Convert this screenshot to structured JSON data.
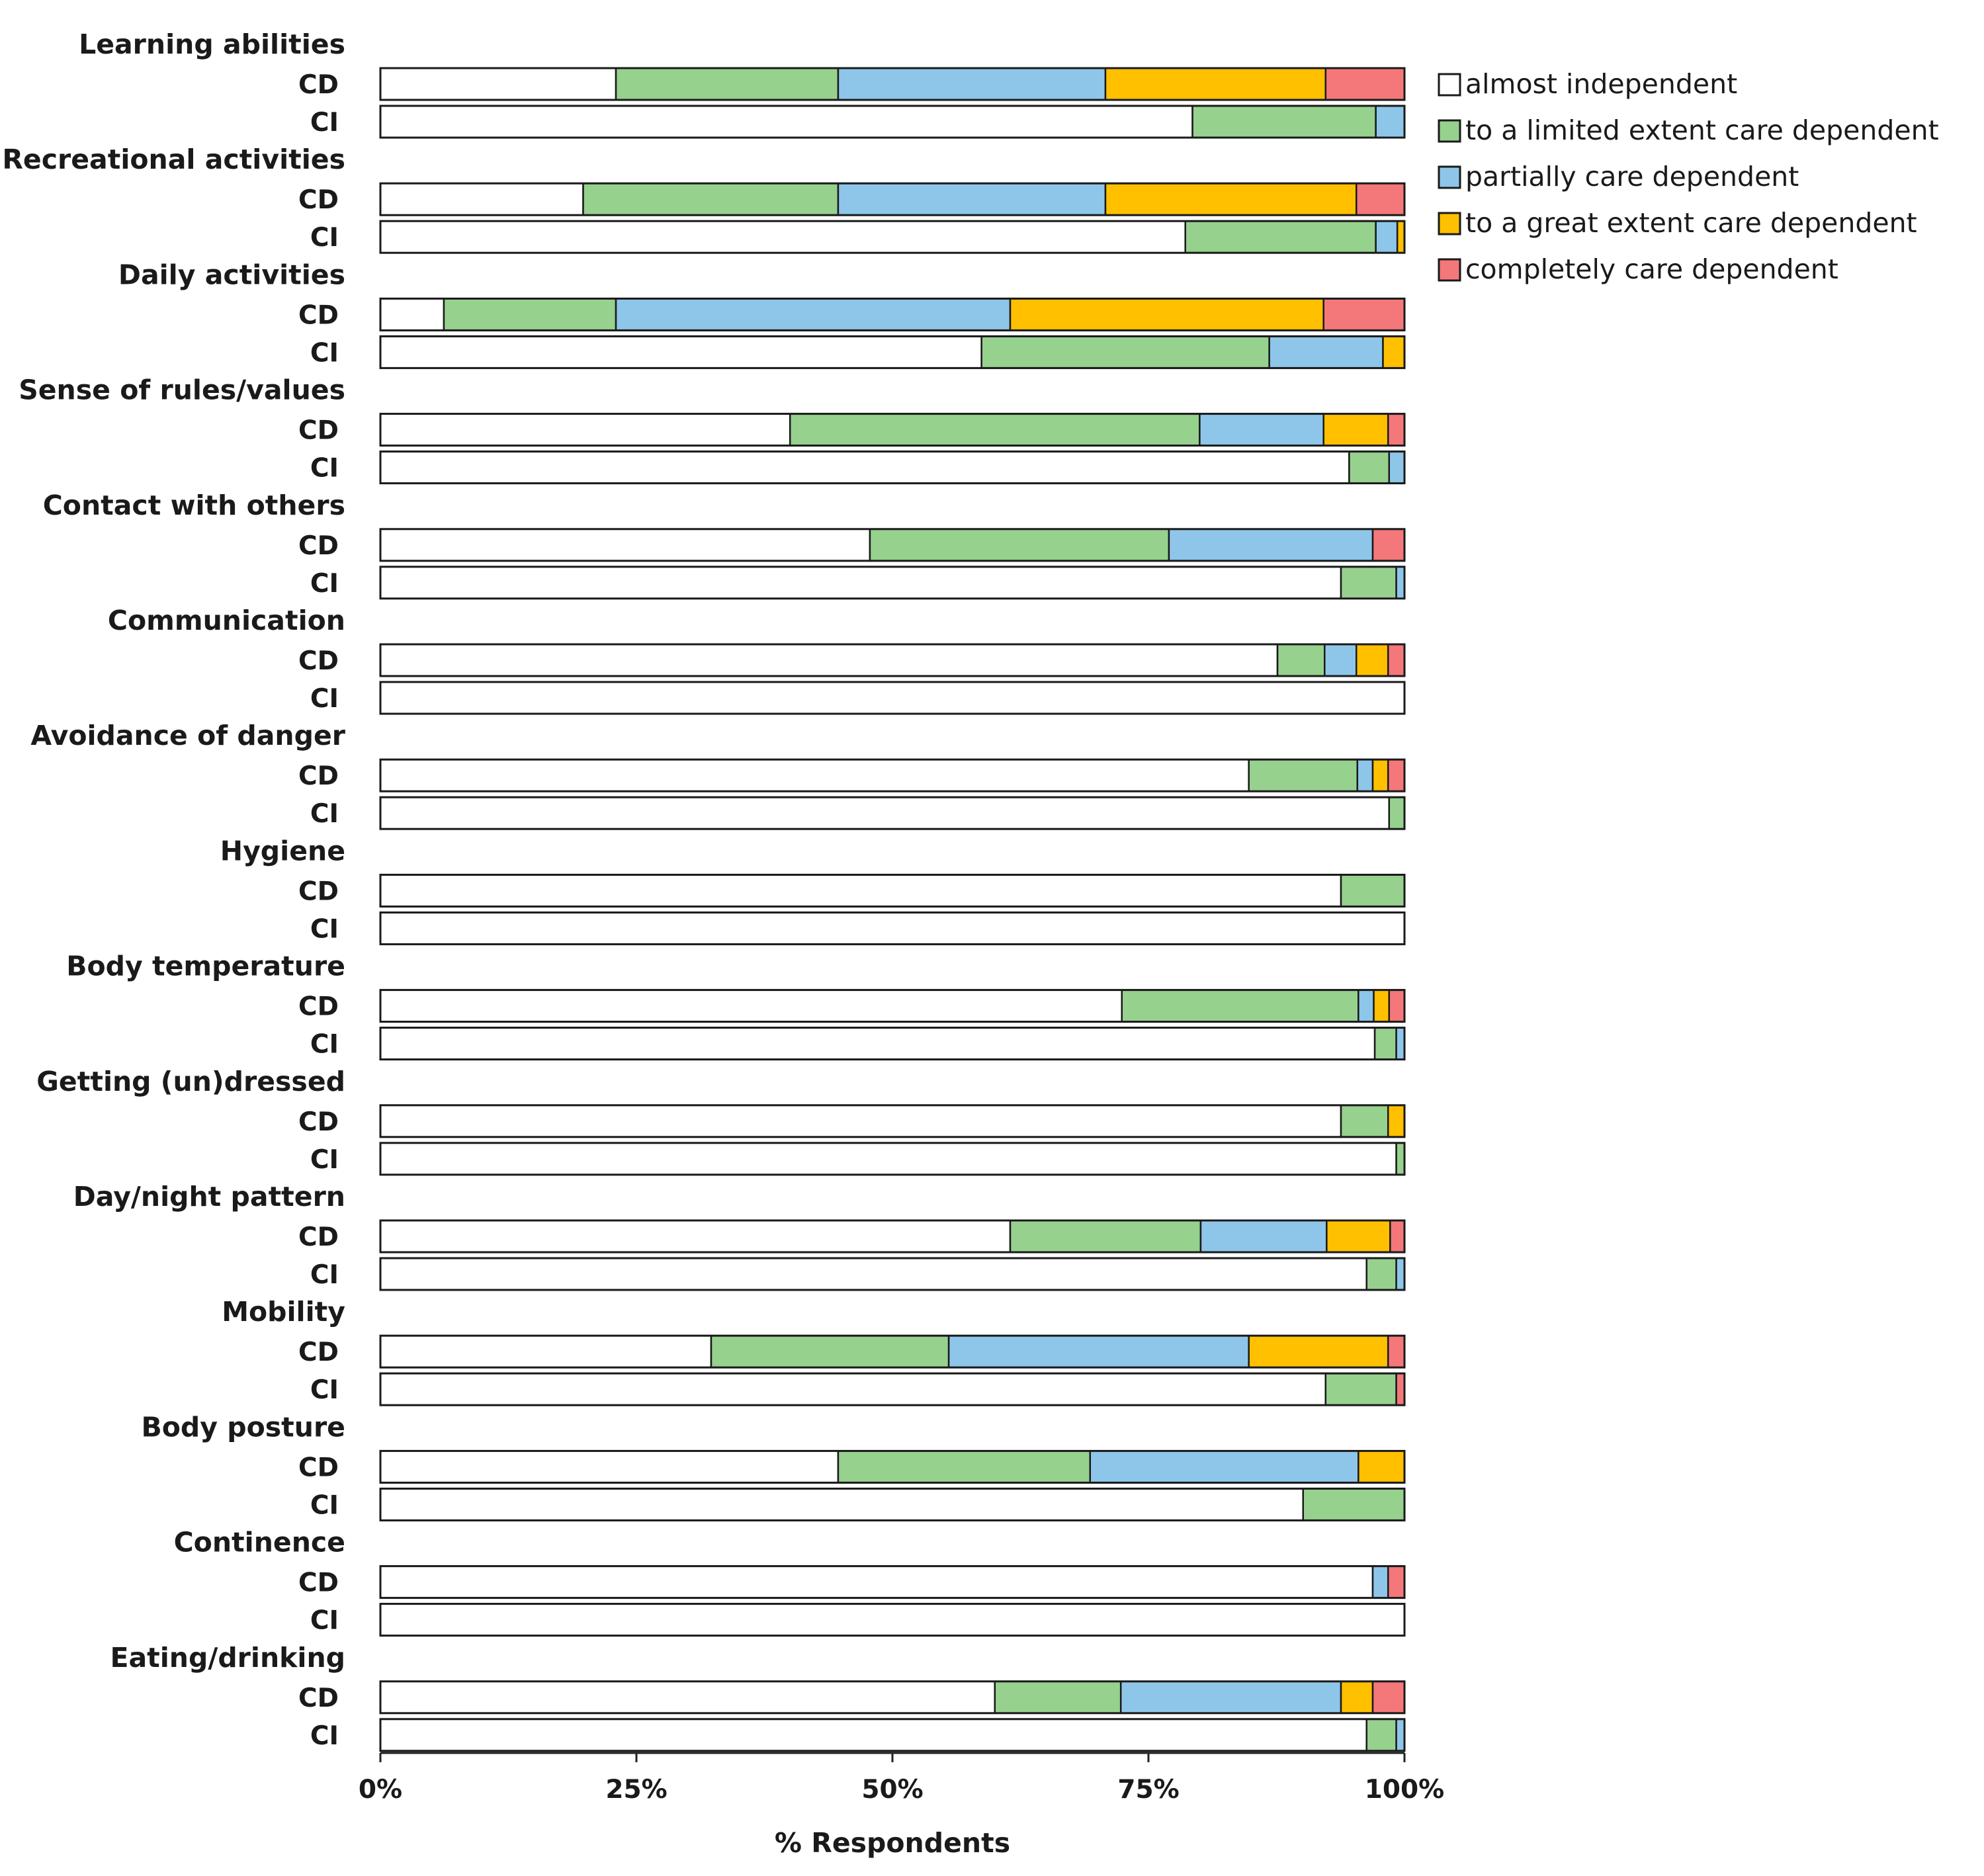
{
  "chart_data": {
    "type": "stacked-bar-horizontal-100",
    "xlabel": "% Respondents",
    "xlim": [
      0,
      100
    ],
    "ticks": [
      {
        "value": 0,
        "label": "0%"
      },
      {
        "value": 25,
        "label": "25%"
      },
      {
        "value": 50,
        "label": "50%"
      },
      {
        "value": 75,
        "label": "75%"
      },
      {
        "value": 100,
        "label": "100%"
      }
    ],
    "groups": [
      "CD",
      "CI"
    ],
    "legend_position": "top-right",
    "series": [
      {
        "name": "almost independent",
        "color": "#ffffff"
      },
      {
        "name": "to a limited extent care dependent",
        "color": "#96d18e"
      },
      {
        "name": "partially care dependent",
        "color": "#8ec6ea"
      },
      {
        "name": "to a great extent care dependent",
        "color": "#ffc000"
      },
      {
        "name": "completely care dependent",
        "color": "#f4777a"
      }
    ],
    "categories": [
      {
        "name": "Learning abilities",
        "CD": [
          23,
          21.7,
          26.1,
          21.5,
          7.7
        ],
        "CI": [
          79.3,
          17.9,
          2.8,
          0,
          0
        ]
      },
      {
        "name": "Recreational activities",
        "CD": [
          19.8,
          24.9,
          26.1,
          24.5,
          4.7
        ],
        "CI": [
          78.6,
          18.6,
          2.1,
          0.7,
          0
        ]
      },
      {
        "name": "Daily activities",
        "CD": [
          6.2,
          16.8,
          38.5,
          30.6,
          7.9
        ],
        "CI": [
          58.7,
          28.1,
          11.1,
          2.1,
          0
        ]
      },
      {
        "name": "Sense of rules/values",
        "CD": [
          40.0,
          40.0,
          12.1,
          6.3,
          1.6
        ],
        "CI": [
          94.6,
          3.9,
          1.5,
          0,
          0
        ]
      },
      {
        "name": "Contact with others",
        "CD": [
          47.8,
          29.2,
          19.9,
          0,
          3.1
        ],
        "CI": [
          93.8,
          5.4,
          0.8,
          0,
          0
        ]
      },
      {
        "name": "Communication",
        "CD": [
          87.6,
          4.6,
          3.1,
          3.1,
          1.6
        ],
        "CI": [
          100,
          0,
          0,
          0,
          0
        ]
      },
      {
        "name": "Avoidance of danger",
        "CD": [
          84.8,
          10.6,
          1.5,
          1.5,
          1.6
        ],
        "CI": [
          98.5,
          1.5,
          0,
          0,
          0
        ]
      },
      {
        "name": "Hygiene",
        "CD": [
          93.8,
          6.2,
          0,
          0,
          0
        ],
        "CI": [
          100,
          0,
          0,
          0,
          0
        ]
      },
      {
        "name": "Body temperature",
        "CD": [
          72.4,
          23.1,
          1.5,
          1.5,
          1.5
        ],
        "CI": [
          97.1,
          2.1,
          0.8,
          0,
          0
        ]
      },
      {
        "name": "Getting (un)dressed",
        "CD": [
          93.8,
          4.6,
          0,
          1.6,
          0
        ],
        "CI": [
          99.2,
          0.8,
          0,
          0,
          0
        ]
      },
      {
        "name": "Day/night pattern",
        "CD": [
          61.5,
          18.6,
          12.3,
          6.2,
          1.4
        ],
        "CI": [
          96.3,
          2.9,
          0.8,
          0,
          0
        ]
      },
      {
        "name": "Mobility",
        "CD": [
          32.3,
          23.2,
          29.3,
          13.6,
          1.6
        ],
        "CI": [
          92.3,
          6.9,
          0,
          0,
          0.8
        ]
      },
      {
        "name": "Body posture",
        "CD": [
          44.7,
          24.6,
          26.2,
          4.5,
          0
        ],
        "CI": [
          90.1,
          9.9,
          0,
          0,
          0
        ]
      },
      {
        "name": "Continence",
        "CD": [
          96.9,
          0,
          1.5,
          0,
          1.6
        ],
        "CI": [
          100,
          0,
          0,
          0,
          0
        ]
      },
      {
        "name": "Eating/drinking",
        "CD": [
          60.0,
          12.3,
          21.5,
          3.1,
          3.1
        ],
        "CI": [
          96.3,
          2.9,
          0.8,
          0,
          0
        ]
      }
    ]
  }
}
